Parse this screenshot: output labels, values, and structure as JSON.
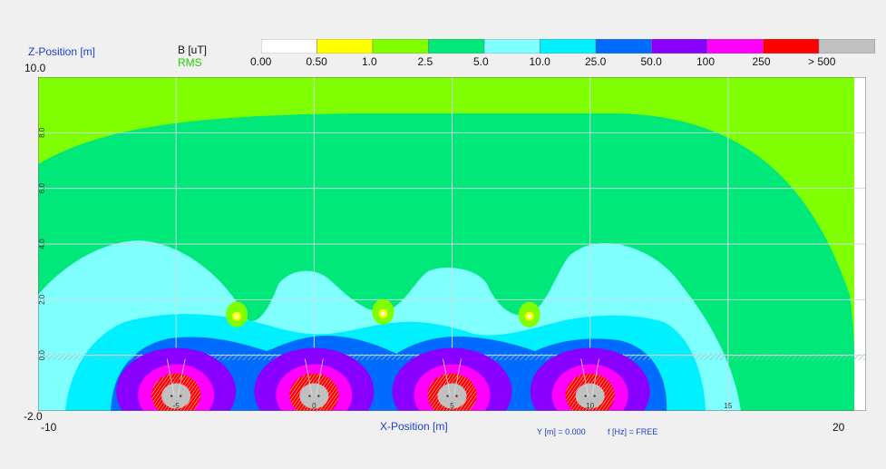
{
  "header": {
    "z_label": "Z-Position [m]",
    "unit_label": "B [uT]",
    "mode_label": "RMS",
    "y_top": "10.0"
  },
  "legend": {
    "colors": [
      "#ffffff",
      "#ffff00",
      "#80ff00",
      "#00e87a",
      "#80ffff",
      "#00f0ff",
      "#006bff",
      "#8a00ff",
      "#ff00ff",
      "#ff0000",
      "#c0c0c0"
    ],
    "labels": [
      "0.00",
      "0.50",
      "1.0",
      "2.5",
      "5.0",
      "10.0",
      "25.0",
      "50.0",
      "100",
      "250",
      "> 500"
    ]
  },
  "axes": {
    "y_bottom": "-2.0",
    "x_left": "-10",
    "x_right": "20",
    "x_title": "X-Position [m]",
    "y_info": "Y [m] = 0.000",
    "f_info": "f [Hz] = FREE"
  },
  "chart_data": {
    "type": "heatmap",
    "title": "",
    "xlabel": "X-Position [m]",
    "ylabel": "Z-Position [m]",
    "xlim": [
      -10,
      20
    ],
    "ylim": [
      -2,
      10
    ],
    "x_ticks": [
      "-5",
      "0",
      "5",
      "10",
      "15"
    ],
    "y_ticks": [
      "8.0",
      "6.0",
      "4.0",
      "2.0",
      "0.0"
    ],
    "x_tick_values": [
      -5,
      0,
      5,
      10,
      15
    ],
    "y_tick_values": [
      8,
      6,
      4,
      2,
      0
    ],
    "grid": true,
    "colorbar": {
      "unit": "B [uT]",
      "mode": "RMS",
      "levels": [
        "0.00",
        "0.50",
        "1.0",
        "2.5",
        "5.0",
        "10.0",
        "25.0",
        "50.0",
        "100",
        "250",
        "> 500"
      ]
    },
    "sources_x": [
      -5,
      0,
      5,
      10
    ],
    "sources_z": -1.3,
    "minima_x": [
      -2.8,
      2.5,
      7.8
    ],
    "minima_z": [
      1.4,
      1.5,
      1.4
    ],
    "ground_z": 0.0
  }
}
